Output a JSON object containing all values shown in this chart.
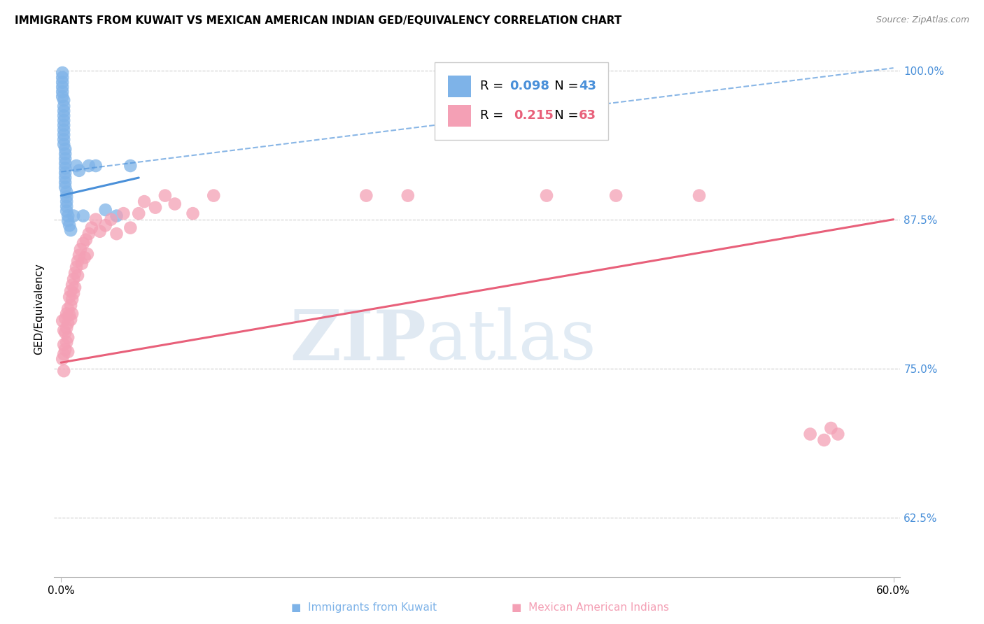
{
  "title": "IMMIGRANTS FROM KUWAIT VS MEXICAN AMERICAN INDIAN GED/EQUIVALENCY CORRELATION CHART",
  "source": "Source: ZipAtlas.com",
  "ylabel": "GED/Equivalency",
  "ytick_labels": [
    "100.0%",
    "87.5%",
    "75.0%",
    "62.5%"
  ],
  "ytick_values": [
    1.0,
    0.875,
    0.75,
    0.625
  ],
  "xlim": [
    -0.005,
    0.605
  ],
  "ylim": [
    0.575,
    1.025
  ],
  "legend_r1": "R = 0.098",
  "legend_n1": "N = 43",
  "legend_r2": "R =  0.215",
  "legend_n2": "N = 63",
  "blue_color": "#7EB3E8",
  "pink_color": "#F4A0B5",
  "trendline1_color": "#4A90D9",
  "trendline2_color": "#E8607A",
  "watermark_zip": "ZIP",
  "watermark_atlas": "atlas",
  "background_color": "#FFFFFF",
  "kuwait_x": [
    0.001,
    0.001,
    0.001,
    0.001,
    0.001,
    0.001,
    0.002,
    0.002,
    0.002,
    0.002,
    0.002,
    0.002,
    0.002,
    0.002,
    0.002,
    0.002,
    0.003,
    0.003,
    0.003,
    0.003,
    0.003,
    0.003,
    0.003,
    0.003,
    0.003,
    0.004,
    0.004,
    0.004,
    0.004,
    0.004,
    0.005,
    0.005,
    0.006,
    0.007,
    0.009,
    0.011,
    0.013,
    0.016,
    0.02,
    0.025,
    0.032,
    0.04,
    0.05
  ],
  "kuwait_y": [
    0.998,
    0.994,
    0.99,
    0.986,
    0.982,
    0.978,
    0.975,
    0.97,
    0.966,
    0.962,
    0.958,
    0.954,
    0.95,
    0.946,
    0.942,
    0.938,
    0.934,
    0.93,
    0.926,
    0.922,
    0.918,
    0.914,
    0.91,
    0.906,
    0.902,
    0.898,
    0.894,
    0.89,
    0.886,
    0.882,
    0.878,
    0.874,
    0.87,
    0.866,
    0.878,
    0.92,
    0.916,
    0.878,
    0.92,
    0.92,
    0.883,
    0.878,
    0.92
  ],
  "mexican_x": [
    0.001,
    0.001,
    0.002,
    0.002,
    0.002,
    0.002,
    0.003,
    0.003,
    0.003,
    0.004,
    0.004,
    0.004,
    0.005,
    0.005,
    0.005,
    0.005,
    0.006,
    0.006,
    0.007,
    0.007,
    0.007,
    0.008,
    0.008,
    0.008,
    0.009,
    0.009,
    0.01,
    0.01,
    0.011,
    0.012,
    0.012,
    0.013,
    0.014,
    0.015,
    0.016,
    0.017,
    0.018,
    0.019,
    0.02,
    0.022,
    0.025,
    0.028,
    0.032,
    0.036,
    0.04,
    0.045,
    0.05,
    0.056,
    0.06,
    0.068,
    0.075,
    0.082,
    0.095,
    0.11,
    0.22,
    0.25,
    0.35,
    0.4,
    0.46,
    0.54,
    0.55,
    0.555,
    0.56
  ],
  "mexican_y": [
    0.79,
    0.758,
    0.782,
    0.77,
    0.762,
    0.748,
    0.792,
    0.78,
    0.766,
    0.796,
    0.784,
    0.772,
    0.8,
    0.788,
    0.776,
    0.764,
    0.81,
    0.795,
    0.815,
    0.803,
    0.791,
    0.82,
    0.808,
    0.796,
    0.825,
    0.813,
    0.83,
    0.818,
    0.835,
    0.84,
    0.828,
    0.845,
    0.85,
    0.838,
    0.855,
    0.843,
    0.858,
    0.846,
    0.863,
    0.868,
    0.875,
    0.865,
    0.87,
    0.875,
    0.863,
    0.88,
    0.868,
    0.88,
    0.89,
    0.885,
    0.895,
    0.888,
    0.88,
    0.895,
    0.895,
    0.895,
    0.895,
    0.895,
    0.895,
    0.695,
    0.69,
    0.7,
    0.695
  ],
  "trendline1_x0": 0.0,
  "trendline1_y0": 0.895,
  "trendline1_x1": 0.056,
  "trendline1_y1": 0.91,
  "trendline2_x0": 0.0,
  "trendline2_y0": 0.755,
  "trendline2_x1": 0.6,
  "trendline2_y1": 0.875,
  "dashline_x0": 0.0,
  "dashline_y0": 0.915,
  "dashline_x1": 0.6,
  "dashline_y1": 1.002
}
